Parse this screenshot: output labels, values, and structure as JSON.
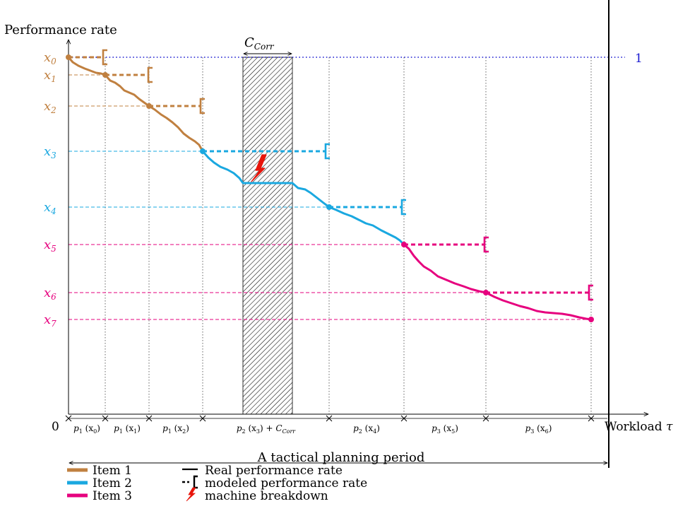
{
  "axis": {
    "y_title": "Performance rate",
    "x_title": "Workload",
    "x_symbol": "τ",
    "origin": "0",
    "one_label": "1"
  },
  "colors": {
    "item1": "#c08040",
    "item2": "#1aa8e0",
    "item3": "#e6007e",
    "reference": "#1a1ad0",
    "breakdown": "#e8140a",
    "hatch": "#000000"
  },
  "x_levels": [
    {
      "base": "x",
      "sub": "0",
      "item": "item1"
    },
    {
      "base": "x",
      "sub": "1",
      "item": "item1"
    },
    {
      "base": "x",
      "sub": "2",
      "item": "item1"
    },
    {
      "base": "x",
      "sub": "3",
      "item": "item2"
    },
    {
      "base": "x",
      "sub": "4",
      "item": "item2"
    },
    {
      "base": "x",
      "sub": "5",
      "item": "item3"
    },
    {
      "base": "x",
      "sub": "6",
      "item": "item3"
    },
    {
      "base": "x",
      "sub": "7",
      "item": "item3"
    }
  ],
  "correction": {
    "base": "C",
    "sub": "Corr"
  },
  "intervals": [
    {
      "p": "p",
      "p_sub": "1",
      "arg": "(x",
      "arg_sub": "0",
      "close": ")",
      "plus": ""
    },
    {
      "p": "p",
      "p_sub": "1",
      "arg": "(x",
      "arg_sub": "1",
      "close": ")",
      "plus": ""
    },
    {
      "p": "p",
      "p_sub": "1",
      "arg": "(x",
      "arg_sub": "2",
      "close": ")",
      "plus": ""
    },
    {
      "p": "p",
      "p_sub": "2",
      "arg": "(x",
      "arg_sub": "3",
      "close": ")",
      "plus": " + C",
      "plus_sub": "Corr"
    },
    {
      "p": "p",
      "p_sub": "2",
      "arg": "(x",
      "arg_sub": "4",
      "close": ")",
      "plus": ""
    },
    {
      "p": "p",
      "p_sub": "3",
      "arg": "(x",
      "arg_sub": "5",
      "close": ")",
      "plus": ""
    },
    {
      "p": "p",
      "p_sub": "3",
      "arg": "(x",
      "arg_sub": "6",
      "close": ")",
      "plus": ""
    }
  ],
  "period_label": "A tactical planning period",
  "legend": {
    "items": [
      {
        "label": "Item 1",
        "color_key": "item1"
      },
      {
        "label": "Item 2",
        "color_key": "item2"
      },
      {
        "label": "Item 3",
        "color_key": "item3"
      }
    ],
    "styles": [
      {
        "label": "Real performance rate",
        "icon": "solid-line-icon"
      },
      {
        "label": "modeled performance rate",
        "icon": "dashed-bracket-icon"
      },
      {
        "label": "machine breakdown",
        "icon": "lightning-icon"
      }
    ]
  }
}
